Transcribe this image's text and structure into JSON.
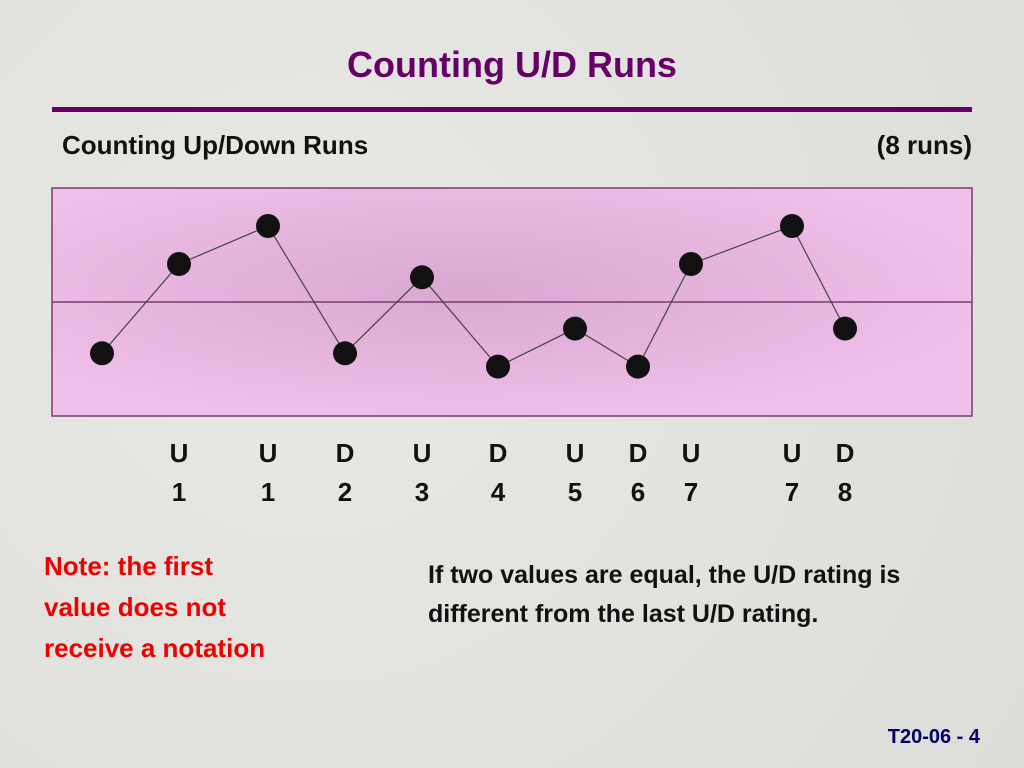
{
  "slide": {
    "title": "Counting U/D Runs",
    "note": "Note: the first value does not receive a notation",
    "remark": "If two values are equal, the U/D rating is different from the last U/D rating.",
    "footer": "T20-06 - 4"
  },
  "chart_data": {
    "type": "line",
    "title": "Counting Up/Down Runs",
    "subtitle": "(8 runs)",
    "x": [
      5,
      12.7,
      21.6,
      29.3,
      37,
      44.6,
      52.3,
      58.6,
      63.9,
      74,
      79.3
    ],
    "xlim": [
      0,
      92
    ],
    "values": [
      3.3,
      8,
      10,
      3.3,
      7.3,
      2.6,
      4.6,
      2.6,
      8,
      10,
      4.6
    ],
    "ylim": [
      0,
      12
    ],
    "center_line": 6,
    "directions": [
      null,
      "U",
      "U",
      "D",
      "U",
      "D",
      "U",
      "D",
      "U",
      "U",
      "D"
    ],
    "runs": [
      null,
      1,
      1,
      2,
      3,
      4,
      5,
      6,
      7,
      7,
      8
    ],
    "color": "#111111"
  }
}
